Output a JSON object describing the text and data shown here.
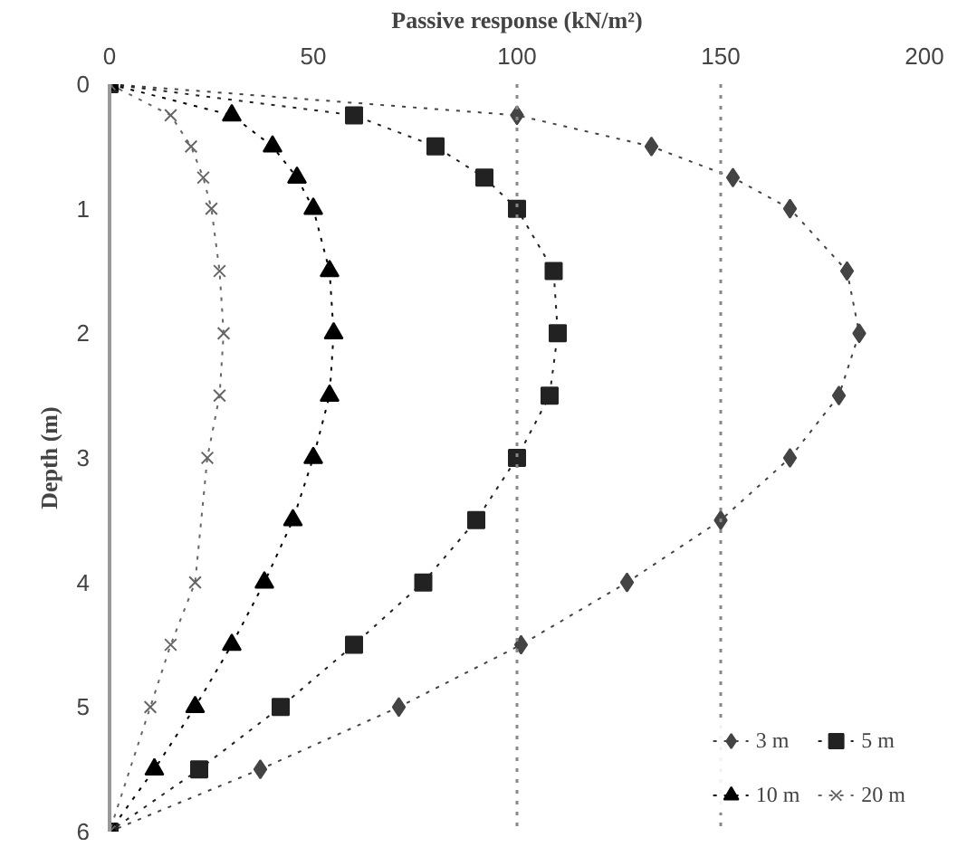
{
  "chart_data": {
    "type": "line",
    "orientation": "horizontal",
    "xlabel": "Passive response (kN/m²)",
    "ylabel": "Depth (m)",
    "x": [
      0,
      0.25,
      0.5,
      0.75,
      1,
      1.5,
      2,
      2.5,
      3,
      3.5,
      4,
      4.5,
      5,
      5.5,
      6
    ],
    "series": [
      {
        "name": "3 m",
        "color": "#444444",
        "marker": "diamond",
        "values": [
          0,
          100,
          133,
          153,
          167,
          181,
          184,
          179,
          167,
          150,
          127,
          101,
          71,
          37,
          0
        ]
      },
      {
        "name": "5 m",
        "color": "#222222",
        "marker": "square",
        "values": [
          0,
          60,
          80,
          92,
          100,
          109,
          110,
          108,
          100,
          90,
          77,
          60,
          42,
          22,
          0
        ]
      },
      {
        "name": "10 m",
        "color": "#000000",
        "marker": "triangle",
        "values": [
          0,
          30,
          40,
          46,
          50,
          54,
          55,
          54,
          50,
          45,
          38,
          30,
          21,
          11,
          0
        ]
      },
      {
        "name": "20 m",
        "color": "#666666",
        "marker": "cross",
        "x": [
          0,
          0.25,
          0.5,
          0.75,
          1,
          1.5,
          2,
          2.5,
          3,
          4,
          4.5,
          5,
          6
        ],
        "values": [
          0,
          15,
          20,
          23,
          25,
          27,
          28,
          27,
          24,
          21,
          15,
          10,
          0
        ]
      }
    ],
    "xlim": [
      0,
      200
    ],
    "xticks": [
      0,
      50,
      100,
      150,
      200
    ],
    "ylim": [
      6,
      0
    ],
    "yticks": [
      0,
      1,
      2,
      3,
      4,
      5,
      6
    ],
    "ref_lines": [
      {
        "axis": "x",
        "value": 100,
        "color": "#888888",
        "line_style": "dotted"
      },
      {
        "axis": "x",
        "value": 150,
        "color": "#888888",
        "line_style": "dotted"
      }
    ],
    "line_style": "dotted",
    "legend": "bottom right",
    "grid": false
  }
}
